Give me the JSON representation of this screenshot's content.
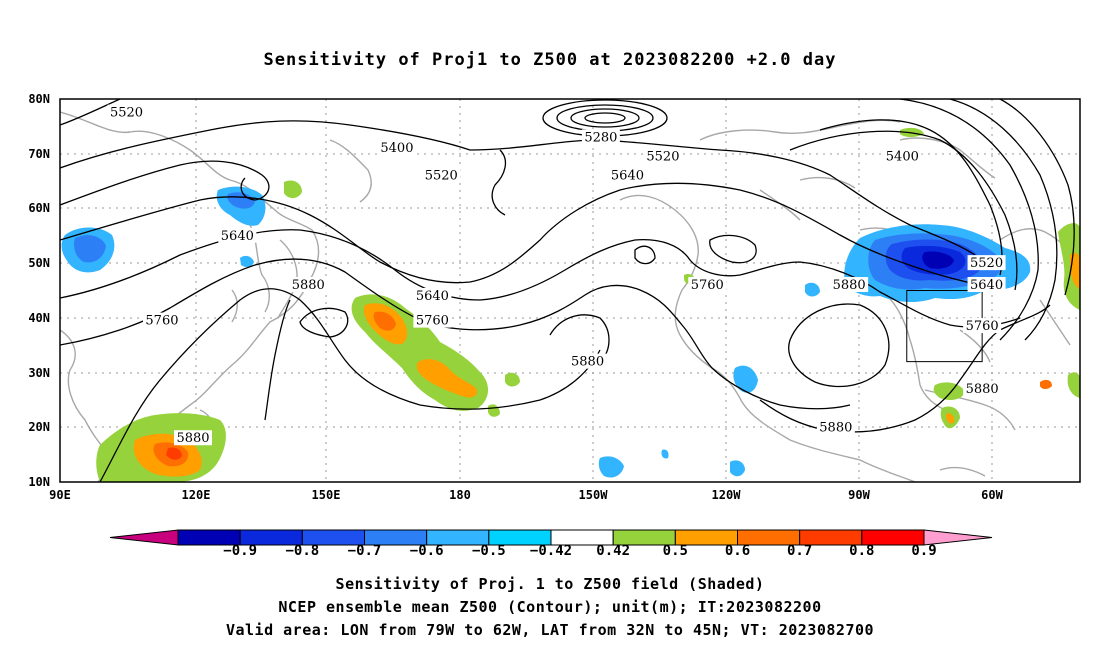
{
  "title": "Sensitivity of Proj1 to Z500 at 2023082200 +2.0 day",
  "lat_labels": [
    "80N",
    "70N",
    "60N",
    "50N",
    "40N",
    "30N",
    "20N",
    "10N"
  ],
  "lon_labels": [
    "90E",
    "120E",
    "150E",
    "180",
    "150W",
    "120W",
    "90W",
    "60W"
  ],
  "contour_labels": [
    {
      "text": "5520",
      "lon": 105,
      "lat": 77.5
    },
    {
      "text": "5400",
      "lon": 166,
      "lat": 71
    },
    {
      "text": "5280",
      "lon": -148,
      "lat": 73
    },
    {
      "text": "5520",
      "lon": -134,
      "lat": 69.5
    },
    {
      "text": "5400",
      "lon": -80,
      "lat": 69.5
    },
    {
      "text": "5520",
      "lon": 176,
      "lat": 66
    },
    {
      "text": "5640",
      "lon": -142,
      "lat": 66
    },
    {
      "text": "5640",
      "lon": 130,
      "lat": 55
    },
    {
      "text": "5880",
      "lon": 146,
      "lat": 46
    },
    {
      "text": "5760",
      "lon": -124,
      "lat": 46
    },
    {
      "text": "5880",
      "lon": -92,
      "lat": 46
    },
    {
      "text": "5520",
      "lon": -61,
      "lat": 50
    },
    {
      "text": "5640",
      "lon": -61,
      "lat": 46
    },
    {
      "text": "5640",
      "lon": 174,
      "lat": 44
    },
    {
      "text": "5760",
      "lon": 113,
      "lat": 39.5
    },
    {
      "text": "5760",
      "lon": 174,
      "lat": 39.5
    },
    {
      "text": "5760",
      "lon": -62,
      "lat": 38.5
    },
    {
      "text": "5880",
      "lon": -151,
      "lat": 32
    },
    {
      "text": "5880",
      "lon": -62,
      "lat": 27
    },
    {
      "text": "5880",
      "lon": -95,
      "lat": 20
    },
    {
      "text": "5880",
      "lon": 120,
      "lat": 18
    }
  ],
  "valid_area": {
    "lon_min": -79,
    "lon_max": -62,
    "lat_min": 32,
    "lat_max": 45
  },
  "colorbar": {
    "values": [
      -0.9,
      -0.8,
      -0.7,
      -0.6,
      -0.5,
      -0.42,
      0.42,
      0.5,
      0.6,
      0.7,
      0.8,
      0.9
    ],
    "labels": [
      "-0.9",
      "-0.8",
      "-0.7",
      "-0.6",
      "-0.5",
      "-0.42",
      "0.42",
      "0.5",
      "0.6",
      "0.7",
      "0.8",
      "0.9"
    ],
    "colors": [
      "#c8007e",
      "#0000b4",
      "#0a28dc",
      "#1e50f0",
      "#2d7ff5",
      "#32b4ff",
      "#00d2ff",
      "#ffffff",
      "#96d23c",
      "#ff9f00",
      "#ff6e00",
      "#ff3c00",
      "#ff0000",
      "#ff9ecf"
    ]
  },
  "captions": [
    "Sensitivity of Proj. 1 to Z500 field (Shaded)",
    "NCEP ensemble mean Z500 (Contour); unit(m); IT:2023082200",
    "Valid area: LON from 79W to 62W, LAT from 32N to 45N; VT: 2023082700"
  ]
}
